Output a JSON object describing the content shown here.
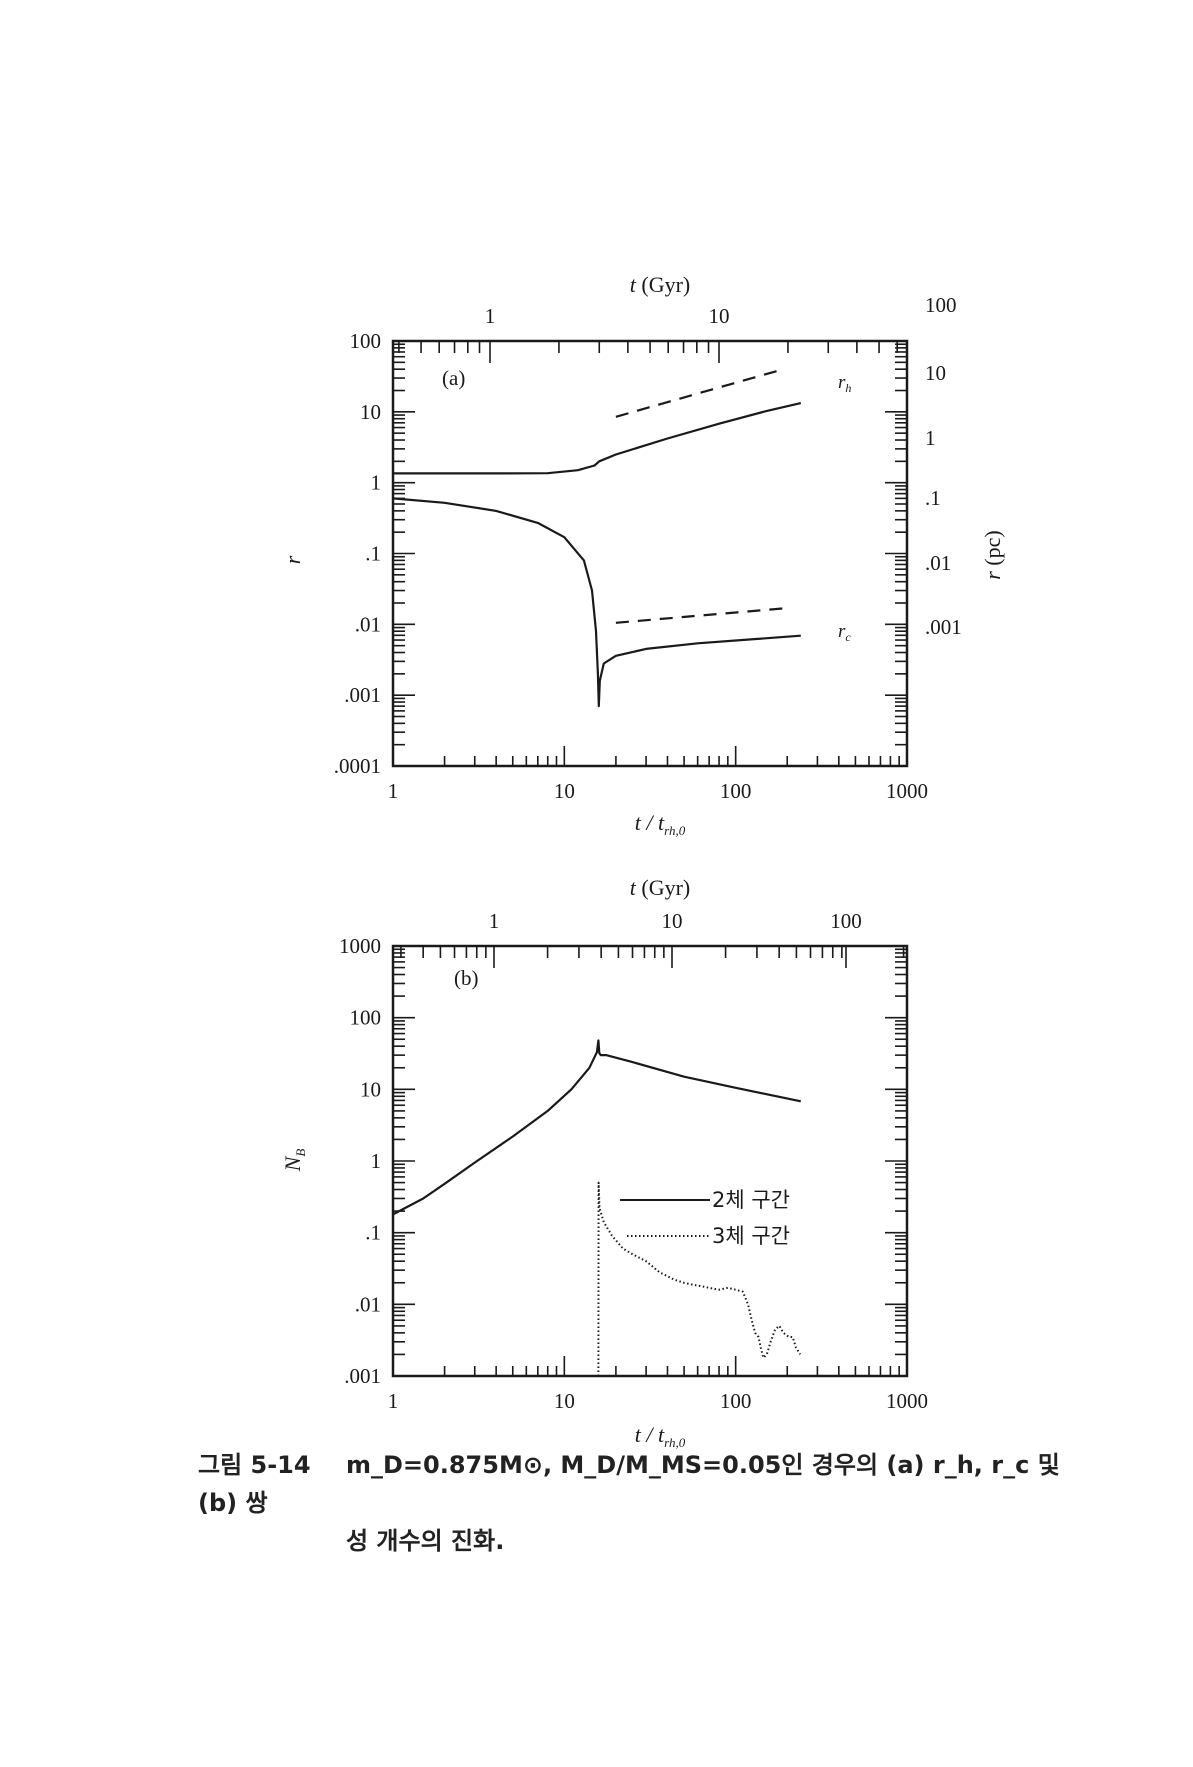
{
  "chart_data": [
    {
      "type": "line",
      "panel_label": "(a)",
      "xlabel": "t / t_rh,0",
      "x_top_label": "t (Gyr)",
      "ylabel": "r",
      "y_right_label": "r (pc)",
      "x_scale": "log",
      "y_scale": "log",
      "xlim": [
        1,
        1000
      ],
      "ylim": [
        0.0001,
        100
      ],
      "x_tick_labels": [
        "1",
        "10",
        "100",
        "1000"
      ],
      "y_tick_labels": [
        "100",
        "10",
        "1",
        ".1",
        ".01",
        ".001",
        ".0001"
      ],
      "top_tick_labels": [
        "1",
        "10"
      ],
      "right_tick_labels": [
        "100",
        "10",
        "1",
        ".1",
        ".01",
        ".001"
      ],
      "series": [
        {
          "name": "r_h",
          "style": "solid",
          "x": [
            1,
            2,
            4,
            8,
            12,
            15,
            16,
            20,
            40,
            80,
            150,
            240
          ],
          "y": [
            1.35,
            1.35,
            1.35,
            1.36,
            1.5,
            1.75,
            2.0,
            2.5,
            4.2,
            6.8,
            10.2,
            13.3
          ]
        },
        {
          "name": "r_h slope",
          "style": "dashed",
          "x": [
            20,
            190
          ],
          "y": [
            8.5,
            40
          ]
        },
        {
          "name": "r_c",
          "style": "solid",
          "x": [
            1,
            2,
            4,
            7,
            10,
            13,
            14.5,
            15.3,
            15.7,
            15.9,
            16.1,
            17,
            20,
            30,
            60,
            120,
            240
          ],
          "y": [
            0.6,
            0.52,
            0.4,
            0.27,
            0.17,
            0.08,
            0.03,
            0.008,
            0.002,
            0.0007,
            0.0016,
            0.0028,
            0.0036,
            0.0045,
            0.0054,
            0.0061,
            0.0069
          ]
        },
        {
          "name": "r_c slope",
          "style": "dashed",
          "x": [
            20,
            190
          ],
          "y": [
            0.0105,
            0.0168
          ]
        }
      ],
      "annotations": [
        {
          "text": "r_h",
          "x": 280,
          "y": 32
        },
        {
          "text": "r_c",
          "x": 280,
          "y": 0.0095
        }
      ]
    },
    {
      "type": "line",
      "panel_label": "(b)",
      "xlabel": "t / t_rh,0",
      "x_top_label": "t (Gyr)",
      "ylabel": "N_B",
      "x_scale": "log",
      "y_scale": "log",
      "xlim": [
        1,
        1000
      ],
      "ylim": [
        0.001,
        1000
      ],
      "x_tick_labels": [
        "1",
        "10",
        "100",
        "1000"
      ],
      "y_tick_labels": [
        "1000",
        "100",
        "10",
        "1",
        ".1",
        ".01",
        ".001"
      ],
      "top_tick_labels": [
        "1",
        "10",
        "100"
      ],
      "legend": [
        "2체 구간",
        "3체 구간"
      ],
      "series": [
        {
          "name": "2체 구간",
          "style": "solid",
          "x": [
            1,
            1.5,
            2,
            3,
            5,
            8,
            11,
            14,
            15.5,
            15.8,
            16.0,
            16.3,
            17.5,
            25,
            50,
            100,
            240
          ],
          "y": [
            0.18,
            0.3,
            0.48,
            0.95,
            2.2,
            5.0,
            10,
            20,
            33,
            48,
            32,
            30,
            30,
            24,
            15,
            10.5,
            6.8
          ]
        },
        {
          "name": "3체 구간",
          "style": "dotted",
          "x": [
            15.8,
            15.85,
            16.05,
            17,
            19,
            22,
            25,
            30,
            36,
            44,
            50,
            55,
            62,
            70,
            80,
            90,
            100,
            110,
            118,
            124,
            130,
            136,
            140,
            145,
            152,
            160,
            170,
            180,
            190,
            205,
            215,
            225,
            238
          ],
          "y": [
            0.001,
            0.5,
            0.22,
            0.14,
            0.09,
            0.06,
            0.05,
            0.04,
            0.028,
            0.022,
            0.02,
            0.019,
            0.018,
            0.017,
            0.016,
            0.017,
            0.016,
            0.015,
            0.01,
            0.006,
            0.004,
            0.0035,
            0.0025,
            0.0018,
            0.002,
            0.003,
            0.0045,
            0.005,
            0.004,
            0.0035,
            0.0035,
            0.0025,
            0.002
          ]
        }
      ]
    }
  ],
  "caption": {
    "figure_number": "그림 5-14",
    "line1": "m_D=0.875M⊙, M_D/M_MS=0.05인 경우의 (a) r_h, r_c 및 (b) 쌍",
    "line2": "성 개수의 진화."
  }
}
